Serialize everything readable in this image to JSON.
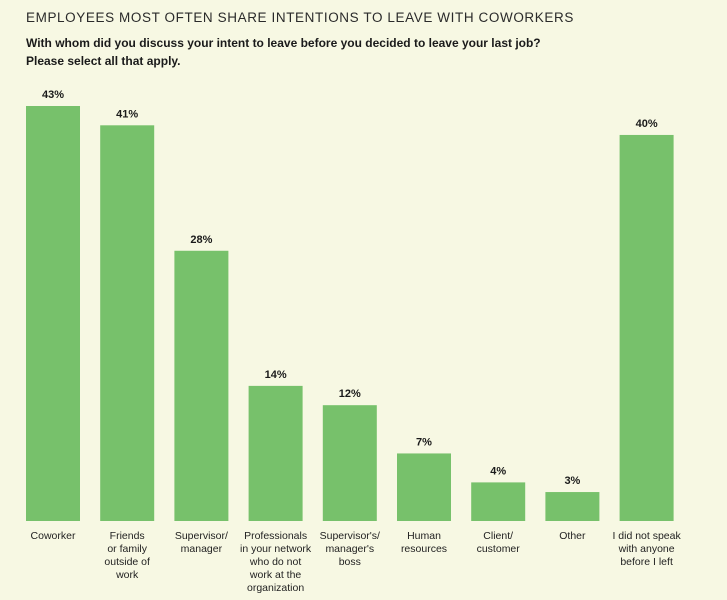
{
  "header": {
    "title": "EMPLOYEES MOST OFTEN SHARE INTENTIONS TO LEAVE WITH COWORKERS",
    "question_line1": "With whom did you discuss your intent to leave before you decided to leave your last job?",
    "question_line2": "Please select all that apply."
  },
  "chart_data": {
    "type": "bar",
    "categories": [
      "Coworker",
      "Friends or family outside of work",
      "Supervisor/ manager",
      "Professionals in your network who do not work at the organization",
      "Supervisor's/ manager's boss",
      "Human resources",
      "Client/ customer",
      "Other",
      "I did not speak with anyone before I left"
    ],
    "category_lines": [
      [
        "Coworker"
      ],
      [
        "Friends",
        "or family",
        "outside of",
        "work"
      ],
      [
        "Supervisor/",
        "manager"
      ],
      [
        "Professionals",
        "in your network",
        "who do not",
        "work at the",
        "organization"
      ],
      [
        "Supervisor's/",
        "manager's",
        "boss"
      ],
      [
        "Human",
        "resources"
      ],
      [
        "Client/",
        "customer"
      ],
      [
        "Other"
      ],
      [
        "I did not speak",
        "with anyone",
        "before I left"
      ]
    ],
    "values": [
      43,
      41,
      28,
      14,
      12,
      7,
      4,
      3,
      40
    ],
    "value_labels": [
      "43%",
      "41%",
      "28%",
      "14%",
      "12%",
      "7%",
      "4%",
      "3%",
      "40%"
    ],
    "ylim": [
      0,
      43
    ],
    "grid": false,
    "bar_color": "#77c16b"
  }
}
